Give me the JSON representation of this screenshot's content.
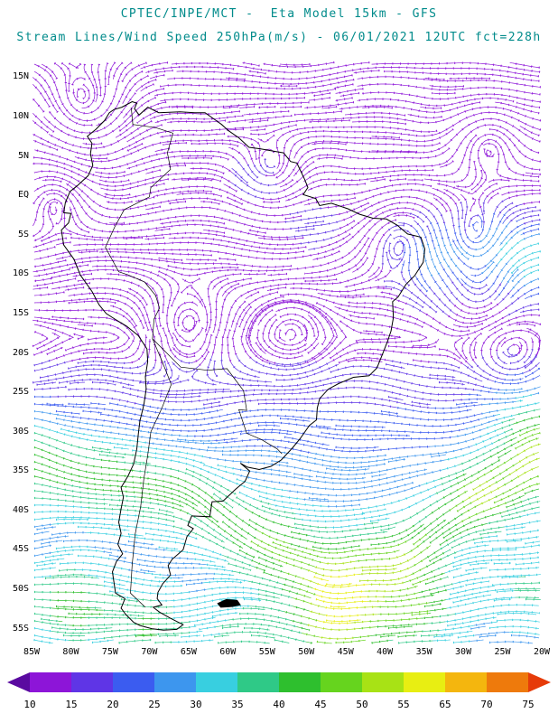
{
  "header": {
    "title": "CPTEC/INPE/MCT -  Eta Model 15km - GFS",
    "subtitle": "Stream Lines/Wind Speed 250hPa(m/s) - 06/01/2021 12UTC fct=228h"
  },
  "chart_data": {
    "type": "streamlines",
    "title": "CPTEC/INPE/MCT -  Eta Model 15km - GFS",
    "subtitle": "Stream Lines/Wind Speed 250hPa(m/s) - 06/01/2021 12UTC fct=228h",
    "source": "CPTEC/INPE/MCT",
    "model": "Eta Model 15km - GFS",
    "variable": "Stream Lines/Wind Speed 250hPa (m/s)",
    "level": "250hPa",
    "valid": "06/01/2021 12UTC",
    "forecast_hour": "fct=228h",
    "title_color": "#008b8b",
    "x_tick_labels": [
      "85W",
      "80W",
      "75W",
      "70W",
      "65W",
      "60W",
      "55W",
      "50W",
      "45W",
      "40W",
      "35W",
      "30W",
      "25W",
      "20W"
    ],
    "y_tick_labels": [
      "15N",
      "10N",
      "5N",
      "EQ",
      "5S",
      "10S",
      "15S",
      "20S",
      "25S",
      "30S",
      "35S",
      "40S",
      "45S",
      "50S",
      "55S"
    ],
    "lon_range": [
      -85,
      -20
    ],
    "lat_range": [
      -57,
      17
    ],
    "colorbar": {
      "unit": "m/s",
      "tick_labels": [
        "10",
        "15",
        "20",
        "25",
        "30",
        "35",
        "40",
        "45",
        "50",
        "55",
        "65",
        "70",
        "75"
      ],
      "thresholds": [
        10,
        15,
        20,
        25,
        30,
        35,
        40,
        45,
        50,
        55,
        60,
        65,
        70,
        75
      ],
      "colors": [
        "#5a0aa0",
        "#8d15d8",
        "#5f35e6",
        "#3b5cf0",
        "#3d96ee",
        "#38cfe0",
        "#2fc987",
        "#2ebf2e",
        "#66d41e",
        "#a8e215",
        "#e8ee12",
        "#f4b60e",
        "#ee7a0c",
        "#e63b09"
      ]
    },
    "wind_field": {
      "base_speed_tropics_ms": 12,
      "jet_axis": [
        [
          -85,
          -33
        ],
        [
          -75,
          -35
        ],
        [
          -65,
          -38
        ],
        [
          -55,
          -44
        ],
        [
          -47,
          -48
        ],
        [
          -38,
          -46
        ],
        [
          -28,
          -38
        ],
        [
          -20,
          -33
        ]
      ],
      "speed_maxima": [
        {
          "lon": -85,
          "lat": -34,
          "speed": 38,
          "r": 4
        },
        {
          "lon": -75,
          "lat": -36,
          "speed": 36,
          "r": 4
        },
        {
          "lon": -65,
          "lat": -38,
          "speed": 36,
          "r": 4
        },
        {
          "lon": -55,
          "lat": -44,
          "speed": 40,
          "r": 4
        },
        {
          "lon": -46,
          "lat": -49,
          "speed": 46,
          "r": 4
        },
        {
          "lon": -37,
          "lat": -46,
          "speed": 42,
          "r": 4
        },
        {
          "lon": -28,
          "lat": -38,
          "speed": 47,
          "r": 3.5
        },
        {
          "lon": -20,
          "lat": -34,
          "speed": 46,
          "r": 3.5
        },
        {
          "lon": -80,
          "lat": -52,
          "speed": 48,
          "r": 3.5
        },
        {
          "lon": -70,
          "lat": -55,
          "speed": 44,
          "r": 3.5
        },
        {
          "lon": -58,
          "lat": -56,
          "speed": 40,
          "r": 3.5
        },
        {
          "lon": -46,
          "lat": -55,
          "speed": 55,
          "r": 4
        },
        {
          "lon": -36,
          "lat": -53,
          "speed": 46,
          "r": 3.5
        },
        {
          "lon": -22,
          "lat": -50,
          "speed": 38,
          "r": 3.5
        },
        {
          "lon": -34,
          "lat": -8,
          "speed": 30,
          "r": 3.5
        },
        {
          "lon": -25,
          "lat": -7,
          "speed": 32,
          "r": 3.5
        },
        {
          "lon": -20,
          "lat": -9,
          "speed": 30,
          "r": 3
        },
        {
          "lon": -22,
          "lat": -28,
          "speed": 38,
          "r": 3.5
        },
        {
          "lon": -57,
          "lat": 2,
          "speed": 19,
          "r": 2.5
        },
        {
          "lon": -49,
          "lat": -4,
          "speed": 19,
          "r": 2.5
        }
      ],
      "circulation_centers": [
        {
          "lon": -78,
          "lat": 10,
          "r": 4.5
        },
        {
          "lon": -82,
          "lat": 0.5,
          "r": 3
        },
        {
          "lon": -54.5,
          "lat": 2.5,
          "r": 3
        },
        {
          "lon": -38,
          "lat": -4.5,
          "r": 3.5
        },
        {
          "lon": -29,
          "lat": -6,
          "r": 3.5
        },
        {
          "lon": -27,
          "lat": 7.5,
          "r": 3
        },
        {
          "lon": -65,
          "lat": -17,
          "r": 3.5
        },
        {
          "lon": -52,
          "lat": -17,
          "r": 3
        },
        {
          "lon": -28,
          "lat": -13,
          "r": 3
        },
        {
          "lon": -24,
          "lat": -20,
          "r": 3
        }
      ]
    }
  }
}
